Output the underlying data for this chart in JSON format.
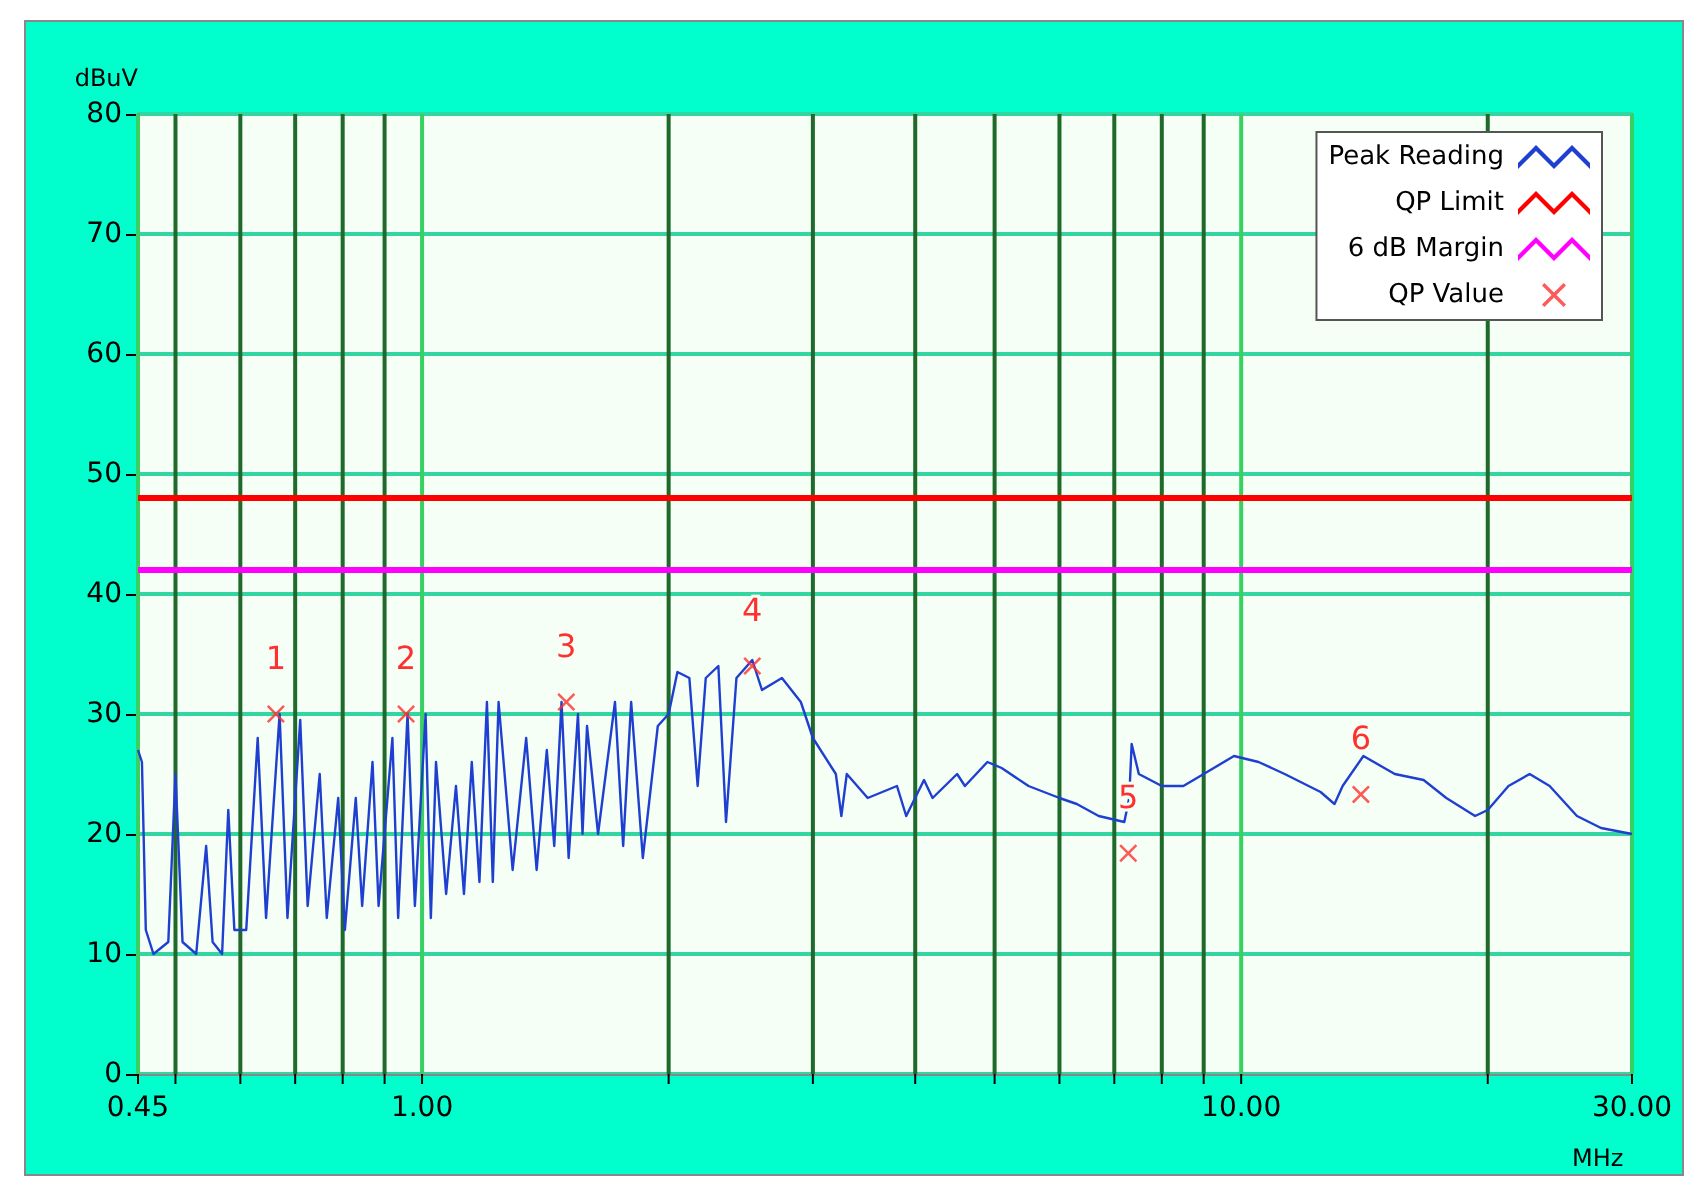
{
  "chart_data": {
    "type": "line",
    "ylabel": "dBuV",
    "xlabel": "MHz",
    "log": "x",
    "grid": true,
    "legend": "top right",
    "marker": "none",
    "line_style": "solid",
    "xlim": [
      0.45,
      30
    ],
    "ylim": [
      0,
      80
    ],
    "xticks": [
      {
        "value": 0.45,
        "label": "0.45"
      },
      {
        "value": 0.5,
        "label": null
      },
      {
        "value": 0.6,
        "label": null
      },
      {
        "value": 0.7,
        "label": null
      },
      {
        "value": 0.8,
        "label": null
      },
      {
        "value": 0.9,
        "label": null
      },
      {
        "value": 1,
        "label": "1.00"
      },
      {
        "value": 2,
        "label": null
      },
      {
        "value": 3,
        "label": null
      },
      {
        "value": 4,
        "label": null
      },
      {
        "value": 5,
        "label": null
      },
      {
        "value": 6,
        "label": null
      },
      {
        "value": 7,
        "label": null
      },
      {
        "value": 8,
        "label": null
      },
      {
        "value": 9,
        "label": null
      },
      {
        "value": 10,
        "label": "10.00"
      },
      {
        "value": 20,
        "label": null
      },
      {
        "value": 30,
        "label": "30.00"
      }
    ],
    "yticks": [
      0,
      10,
      20,
      30,
      40,
      50,
      60,
      70,
      80
    ],
    "series": [
      {
        "name": "Peak Reading",
        "color": "#1f3fd0",
        "x": [
          0.45,
          0.455,
          0.46,
          0.47,
          0.49,
          0.5,
          0.51,
          0.53,
          0.545,
          0.555,
          0.57,
          0.58,
          0.59,
          0.61,
          0.63,
          0.645,
          0.67,
          0.685,
          0.71,
          0.725,
          0.75,
          0.765,
          0.79,
          0.805,
          0.83,
          0.845,
          0.87,
          0.885,
          0.92,
          0.935,
          0.96,
          0.98,
          1.01,
          1.025,
          1.04,
          1.07,
          1.1,
          1.125,
          1.15,
          1.175,
          1.2,
          1.22,
          1.24,
          1.29,
          1.34,
          1.38,
          1.42,
          1.45,
          1.48,
          1.51,
          1.55,
          1.57,
          1.59,
          1.64,
          1.72,
          1.76,
          1.8,
          1.86,
          1.94,
          2.0,
          2.05,
          2.12,
          2.17,
          2.22,
          2.3,
          2.35,
          2.42,
          2.53,
          2.6,
          2.75,
          2.9,
          3.0,
          3.2,
          3.25,
          3.3,
          3.5,
          3.8,
          3.9,
          4.1,
          4.2,
          4.5,
          4.6,
          4.9,
          5.1,
          5.5,
          6.0,
          6.3,
          6.7,
          7.2,
          7.3,
          7.35,
          7.5,
          8.0,
          8.5,
          9.0,
          9.8,
          10.5,
          11.3,
          12.5,
          13.0,
          13.3,
          14.1,
          15.4,
          16.7,
          17.8,
          19.3,
          20,
          21.2,
          22.5,
          23.8,
          25.7,
          27.5,
          30
        ],
        "values": [
          27,
          26,
          12,
          10,
          11,
          25,
          11,
          10,
          19,
          11,
          10,
          22,
          12,
          12,
          28,
          13,
          30,
          13,
          29.5,
          14,
          25,
          13,
          23,
          12,
          23,
          14,
          26,
          14,
          28,
          13,
          30,
          14,
          30,
          13,
          26,
          15,
          24,
          15,
          26,
          16,
          31,
          16,
          31,
          17,
          28,
          17,
          27,
          19,
          31,
          18,
          30,
          20,
          29,
          20,
          31,
          19,
          31,
          18,
          29,
          30,
          33.5,
          33,
          24,
          33,
          34,
          21,
          33,
          34.5,
          32,
          33,
          31,
          28,
          25,
          21.5,
          25,
          23,
          24,
          21.5,
          24.5,
          23,
          25,
          24,
          26,
          25.5,
          24,
          23,
          22.5,
          21.5,
          21,
          23,
          27.5,
          25,
          24,
          24,
          25,
          26.5,
          26,
          25,
          23.5,
          22.5,
          24,
          26.5,
          25,
          24.5,
          23,
          21.5,
          22,
          24,
          25,
          24,
          21.5,
          20.5,
          20
        ]
      },
      {
        "name": "QP Limit",
        "color": "#ff0000",
        "x": [
          0.45,
          30
        ],
        "values": [
          48,
          48
        ]
      },
      {
        "name": "6 dB Margin",
        "color": "#ff00ff",
        "x": [
          0.45,
          30
        ],
        "values": [
          42,
          42
        ]
      },
      {
        "name": "QP Value",
        "type": "scatter",
        "marker": "cross",
        "color": "#ff3030",
        "x": [
          0.663,
          0.956,
          1.5,
          2.53,
          7.28,
          14.0
        ],
        "values": [
          30,
          30,
          31,
          34,
          18.4,
          23.3
        ]
      }
    ],
    "annotations": [
      {
        "text": "1",
        "x": 0.663,
        "y": 30
      },
      {
        "text": "2",
        "x": 0.956,
        "y": 30
      },
      {
        "text": "3",
        "x": 1.5,
        "y": 31
      },
      {
        "text": "4",
        "x": 2.53,
        "y": 34
      },
      {
        "text": "5",
        "x": 7.28,
        "y": 18.4
      },
      {
        "text": "6",
        "x": 14.0,
        "y": 23.3
      }
    ]
  }
}
